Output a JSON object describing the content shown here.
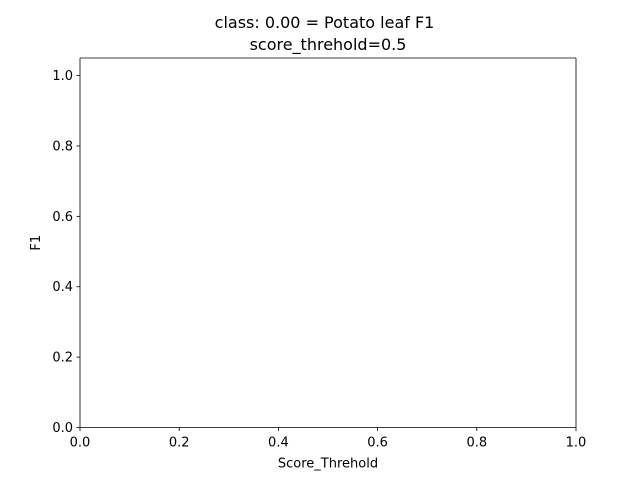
{
  "chart_data": {
    "type": "line",
    "title_lines": [
      "class: 0.00 = Potato leaf F1",
      "score_threhold=0.5"
    ],
    "xlabel": "Score_Threhold",
    "ylabel": "F1",
    "xlim": [
      0.0,
      1.0
    ],
    "ylim": [
      0.0,
      1.05
    ],
    "xticks": [
      0.0,
      0.2,
      0.4,
      0.6,
      0.8,
      1.0
    ],
    "yticks": [
      0.0,
      0.2,
      0.4,
      0.6,
      0.8,
      1.0
    ],
    "xtick_labels": [
      "0.0",
      "0.2",
      "0.4",
      "0.6",
      "0.8",
      "1.0"
    ],
    "ytick_labels": [
      "0.0",
      "0.2",
      "0.4",
      "0.6",
      "0.8",
      "1.0"
    ],
    "series": [],
    "grid": false,
    "colors": {
      "axis": "#000000",
      "background": "#ffffff"
    }
  }
}
